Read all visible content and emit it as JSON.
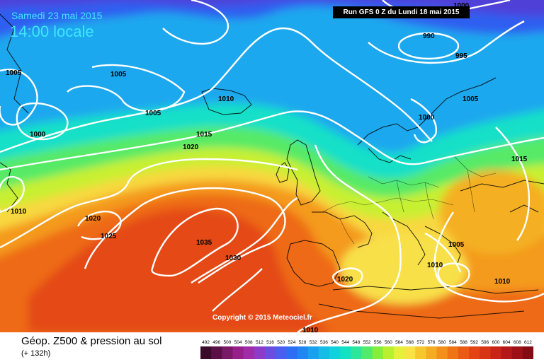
{
  "header": {
    "date": "Samedi 23 mai 2015",
    "time": "14:00 locale",
    "run": "Run GFS 0 Z du Lundi 18 mai 2015"
  },
  "copyright": "Copyright © 2015 Meteociel.fr",
  "footer": {
    "title": "Géop. Z500 & pression au sol",
    "subtitle": "(+ 132h)"
  },
  "isobar_labels": [
    "1000",
    "990",
    "995",
    "1005",
    "1005",
    "1005",
    "1010",
    "1000",
    "1005",
    "1000",
    "1015",
    "1020",
    "1015",
    "1010",
    "1020",
    "1025",
    "1035",
    "1030",
    "1005",
    "1010",
    "1020",
    "1010",
    "1010"
  ],
  "scale": {
    "labels": [
      "492",
      "496",
      "500",
      "504",
      "508",
      "512",
      "516",
      "520",
      "524",
      "528",
      "532",
      "536",
      "540",
      "544",
      "548",
      "552",
      "556",
      "560",
      "564",
      "568",
      "572",
      "576",
      "580",
      "584",
      "588",
      "592",
      "596",
      "600",
      "604",
      "608",
      "612"
    ],
    "colors": [
      "#3a0a2a",
      "#5a1046",
      "#7a1a66",
      "#961f8a",
      "#a02ca8",
      "#8c3cc8",
      "#6a4ee0",
      "#4a5ff0",
      "#2d6ef5",
      "#1f86f2",
      "#19a0ee",
      "#14bce6",
      "#10d2dc",
      "#12e2c4",
      "#2ce69c",
      "#52ea6c",
      "#84ee3c",
      "#b8f030",
      "#e4f03a",
      "#f8e244",
      "#f6c82e",
      "#f4ac22",
      "#f2901a",
      "#ee7416",
      "#ea5a14",
      "#e44414",
      "#d83416",
      "#c82418",
      "#b41818",
      "#9c1016",
      "#860a14"
    ]
  }
}
